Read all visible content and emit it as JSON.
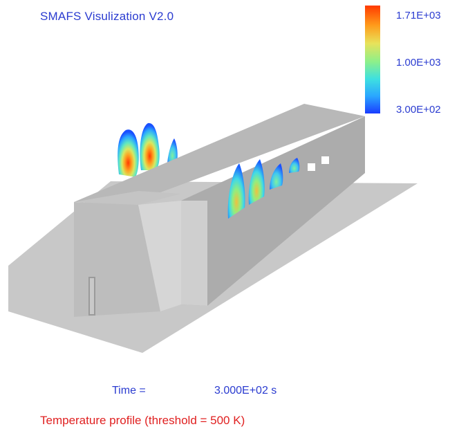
{
  "header": {
    "title": "SMAFS Visulization V2.0"
  },
  "colorbar": {
    "max_label": "1.71E+03",
    "mid_label": "1.00E+03",
    "min_label": "3.00E+02",
    "colors": [
      "#ff3a00",
      "#ff9a1a",
      "#e8e25a",
      "#8df08a",
      "#3ee0e0",
      "#2aa6ff",
      "#1a3cff"
    ]
  },
  "footer": {
    "time_label": "Time =",
    "time_value": "3.000E+02 s",
    "caption": "Temperature profile (threshold = 500 K)"
  }
}
